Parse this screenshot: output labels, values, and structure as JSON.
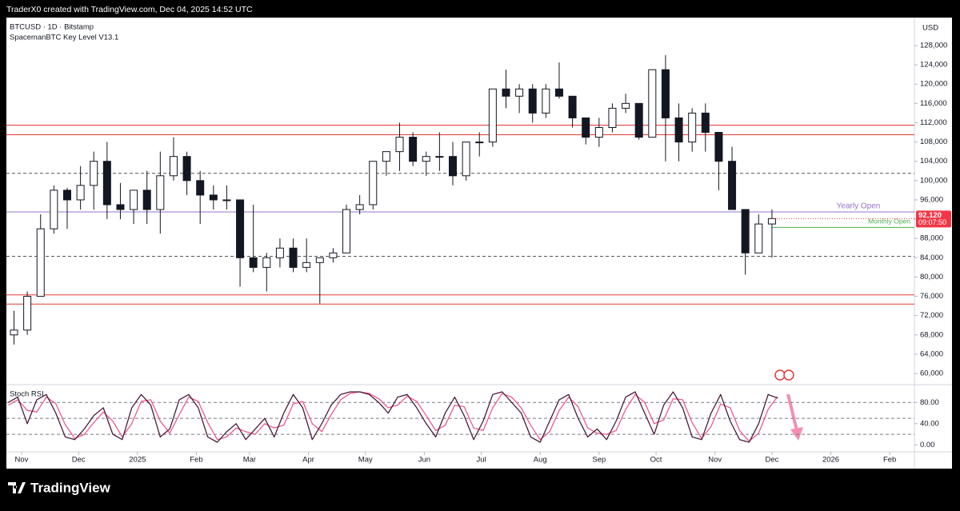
{
  "header": {
    "title": "TraderX0 created with TradingView.com, Dec 04, 2025 14:52 UTC"
  },
  "footer": {
    "brand": "TradingView"
  },
  "chart_data": [
    {
      "type": "candlestick",
      "symbol": "BTCUSD · 1D · Bitstamp",
      "indicator": "SpacemanBTC Key Level V13.1",
      "axis_label": "USD",
      "x": [
        "2024-10-28",
        "2024-11-04",
        "2024-11-11",
        "2024-11-18",
        "2024-11-25",
        "2024-12-02",
        "2024-12-09",
        "2024-12-16",
        "2024-12-23",
        "2024-12-30",
        "2025-01-06",
        "2025-01-13",
        "2025-01-20",
        "2025-01-27",
        "2025-02-03",
        "2025-02-10",
        "2025-02-17",
        "2025-02-24",
        "2025-03-03",
        "2025-03-10",
        "2025-03-17",
        "2025-03-24",
        "2025-03-31",
        "2025-04-07",
        "2025-04-14",
        "2025-04-21",
        "2025-04-28",
        "2025-05-05",
        "2025-05-12",
        "2025-05-19",
        "2025-05-26",
        "2025-06-02",
        "2025-06-09",
        "2025-06-16",
        "2025-06-23",
        "2025-06-30",
        "2025-07-07",
        "2025-07-14",
        "2025-07-21",
        "2025-07-28",
        "2025-08-04",
        "2025-08-11",
        "2025-08-18",
        "2025-08-25",
        "2025-09-01",
        "2025-09-08",
        "2025-09-15",
        "2025-09-22",
        "2025-09-29",
        "2025-10-06",
        "2025-10-13",
        "2025-10-20",
        "2025-10-27",
        "2025-11-03",
        "2025-11-10",
        "2025-11-17",
        "2025-11-24",
        "2025-12-01"
      ],
      "open": [
        68000,
        69000,
        76000,
        90000,
        98000,
        96000,
        99000,
        104000,
        95000,
        94000,
        98000,
        94000,
        101000,
        105000,
        100000,
        97000,
        96000,
        96000,
        84000,
        82000,
        84000,
        86000,
        82000,
        83000,
        84000,
        85000,
        94000,
        95000,
        104000,
        106000,
        109000,
        104000,
        105000,
        105000,
        101000,
        108000,
        108000,
        119000,
        117500,
        119000,
        114000,
        119000,
        117500,
        113000,
        109000,
        111000,
        115000,
        116000,
        109000,
        123000,
        113000,
        108000,
        114000,
        110000,
        104000,
        94000,
        85000,
        91000
      ],
      "high": [
        73000,
        77000,
        93000,
        99000,
        98500,
        103000,
        106000,
        108000,
        99500,
        98000,
        102000,
        106000,
        109000,
        106000,
        102000,
        99000,
        99000,
        96000,
        95000,
        85000,
        88000,
        88000,
        88000,
        84000,
        86000,
        95000,
        97000,
        104000,
        106000,
        112000,
        110000,
        106000,
        110000,
        108000,
        108000,
        110000,
        119000,
        123000,
        120000,
        120000,
        120000,
        124500,
        117500,
        113000,
        113000,
        116000,
        118000,
        116000,
        123000,
        126000,
        116000,
        115000,
        116000,
        110000,
        107000,
        94000,
        93000,
        94000
      ],
      "low": [
        66000,
        68000,
        76000,
        89000,
        90000,
        94000,
        94000,
        92000,
        92000,
        91000,
        91000,
        89000,
        100000,
        97000,
        91000,
        94000,
        94000,
        78000,
        81000,
        77000,
        82000,
        81000,
        81000,
        74500,
        83000,
        85000,
        93000,
        94000,
        101000,
        102000,
        103000,
        101000,
        102000,
        99000,
        100000,
        105000,
        107000,
        115000,
        114000,
        112000,
        113000,
        117000,
        111000,
        107500,
        107000,
        110000,
        114000,
        108500,
        109000,
        104000,
        104000,
        106000,
        106000,
        98000,
        94000,
        80500,
        85000,
        84000
      ],
      "close": [
        69000,
        76000,
        90000,
        98000,
        96000,
        99000,
        104000,
        95000,
        94000,
        98000,
        94000,
        101000,
        105000,
        100000,
        97000,
        96000,
        96000,
        84000,
        82000,
        84000,
        86000,
        82000,
        83000,
        84000,
        85000,
        94000,
        95000,
        104000,
        106000,
        109000,
        104000,
        105000,
        105000,
        101000,
        108000,
        108000,
        119000,
        117500,
        119000,
        114000,
        119000,
        117500,
        113000,
        109000,
        111000,
        115000,
        116000,
        109000,
        123000,
        113000,
        108000,
        114000,
        110000,
        104000,
        94000,
        85000,
        91000,
        92120
      ],
      "up_color": "#ffffff",
      "down_color": "#131722",
      "wick_color": "#131722",
      "xlim": [
        "2024-10-24",
        "2026-02-14"
      ],
      "xticks": [
        {
          "value": "2024-11-01",
          "label": "Nov"
        },
        {
          "value": "2024-12-01",
          "label": "Dec"
        },
        {
          "value": "2025-01-01",
          "label": "2025"
        },
        {
          "value": "2025-02-01",
          "label": "Feb"
        },
        {
          "value": "2025-03-01",
          "label": "Mar"
        },
        {
          "value": "2025-04-01",
          "label": "Apr"
        },
        {
          "value": "2025-05-01",
          "label": "May"
        },
        {
          "value": "2025-06-01",
          "label": "Jun"
        },
        {
          "value": "2025-07-01",
          "label": "Jul"
        },
        {
          "value": "2025-08-01",
          "label": "Aug"
        },
        {
          "value": "2025-09-01",
          "label": "Sep"
        },
        {
          "value": "2025-10-01",
          "label": "Oct"
        },
        {
          "value": "2025-11-01",
          "label": "Nov"
        },
        {
          "value": "2025-12-01",
          "label": "Dec"
        },
        {
          "value": "2026-01-01",
          "label": "2026"
        },
        {
          "value": "2026-02-01",
          "label": "Feb"
        }
      ],
      "ylim": [
        57850,
        133800
      ],
      "yticks": [
        {
          "value": 60000,
          "label": "60,000"
        },
        {
          "value": 64000,
          "label": "64,000"
        },
        {
          "value": 68000,
          "label": "68,000"
        },
        {
          "value": 72000,
          "label": "72,000"
        },
        {
          "value": 76000,
          "label": "76,000"
        },
        {
          "value": 80000,
          "label": "80,000"
        },
        {
          "value": 84000,
          "label": "84,000"
        },
        {
          "value": 88000,
          "label": "88,000"
        },
        {
          "value": 92000,
          "label": "92,000"
        },
        {
          "value": 96000,
          "label": "96,000"
        },
        {
          "value": 100000,
          "label": "100,000"
        },
        {
          "value": 104000,
          "label": "104,000"
        },
        {
          "value": 108000,
          "label": "108,000"
        },
        {
          "value": 112000,
          "label": "112,000"
        },
        {
          "value": 116000,
          "label": "116,000"
        },
        {
          "value": 120000,
          "label": "120,000"
        },
        {
          "value": 124000,
          "label": "124,000"
        },
        {
          "value": 128000,
          "label": "128,000"
        }
      ],
      "levels": [
        {
          "value": 111500,
          "color": "#e53935",
          "style": "solid"
        },
        {
          "value": 109500,
          "color": "#e53935",
          "style": "solid"
        },
        {
          "value": 101500,
          "color": "#555555",
          "style": "dashed"
        },
        {
          "value": 93500,
          "color": "#9575cd",
          "style": "solid",
          "label": "Yearly Open"
        },
        {
          "value": 90300,
          "color": "#4caf50",
          "style": "solid",
          "label": "Monthly Open",
          "extend": "current"
        },
        {
          "value": 84300,
          "color": "#555555",
          "style": "dashed"
        },
        {
          "value": 76300,
          "color": "#e53935",
          "style": "solid"
        },
        {
          "value": 74400,
          "color": "#e53935",
          "style": "solid"
        }
      ],
      "last_price": {
        "value": 92120,
        "label": "92,120",
        "countdown": "09:07:50",
        "color": "#f23645"
      }
    },
    {
      "type": "line",
      "title": "Stoch RSI",
      "x": [
        "2024-10-25",
        "2024-10-30",
        "2024-11-04",
        "2024-11-09",
        "2024-11-14",
        "2024-11-19",
        "2024-11-24",
        "2024-11-29",
        "2024-12-04",
        "2024-12-09",
        "2024-12-14",
        "2024-12-19",
        "2024-12-24",
        "2024-12-29",
        "2025-01-03",
        "2025-01-08",
        "2025-01-13",
        "2025-01-18",
        "2025-01-23",
        "2025-01-28",
        "2025-02-02",
        "2025-02-07",
        "2025-02-12",
        "2025-02-17",
        "2025-02-22",
        "2025-02-27",
        "2025-03-04",
        "2025-03-09",
        "2025-03-14",
        "2025-03-19",
        "2025-03-24",
        "2025-03-29",
        "2025-04-03",
        "2025-04-08",
        "2025-04-13",
        "2025-04-18",
        "2025-04-23",
        "2025-04-28",
        "2025-05-03",
        "2025-05-08",
        "2025-05-13",
        "2025-05-18",
        "2025-05-23",
        "2025-05-28",
        "2025-06-02",
        "2025-06-07",
        "2025-06-12",
        "2025-06-17",
        "2025-06-22",
        "2025-06-27",
        "2025-07-02",
        "2025-07-07",
        "2025-07-12",
        "2025-07-17",
        "2025-07-22",
        "2025-07-27",
        "2025-08-01",
        "2025-08-06",
        "2025-08-11",
        "2025-08-16",
        "2025-08-21",
        "2025-08-26",
        "2025-08-31",
        "2025-09-05",
        "2025-09-10",
        "2025-09-15",
        "2025-09-20",
        "2025-09-25",
        "2025-09-30",
        "2025-10-05",
        "2025-10-10",
        "2025-10-15",
        "2025-10-20",
        "2025-10-25",
        "2025-10-30",
        "2025-11-04",
        "2025-11-09",
        "2025-11-14",
        "2025-11-19",
        "2025-11-24",
        "2025-11-29",
        "2025-12-04"
      ],
      "series": [
        {
          "color": "#4a1d3a",
          "values": [
            80,
            90,
            40,
            85,
            95,
            60,
            15,
            10,
            30,
            55,
            70,
            20,
            10,
            70,
            95,
            75,
            15,
            30,
            85,
            95,
            70,
            15,
            5,
            25,
            40,
            10,
            30,
            50,
            15,
            60,
            95,
            70,
            10,
            40,
            75,
            95,
            100,
            100,
            95,
            80,
            60,
            90,
            95,
            70,
            40,
            15,
            60,
            90,
            55,
            10,
            45,
            95,
            100,
            80,
            60,
            15,
            5,
            45,
            85,
            95,
            50,
            15,
            30,
            10,
            45,
            90,
            100,
            60,
            20,
            75,
            100,
            70,
            15,
            10,
            60,
            95,
            45,
            10,
            5,
            40,
            95,
            88
          ]
        },
        {
          "color": "#ec5b8d",
          "values": [
            75,
            85,
            65,
            62,
            90,
            78,
            38,
            12,
            20,
            42,
            62,
            45,
            15,
            40,
            82,
            85,
            45,
            22,
            57,
            90,
            82,
            42,
            10,
            15,
            32,
            25,
            20,
            40,
            32,
            37,
            77,
            82,
            40,
            25,
            57,
            85,
            97,
            100,
            97,
            87,
            70,
            75,
            92,
            82,
            55,
            27,
            37,
            75,
            72,
            32,
            27,
            70,
            97,
            90,
            70,
            37,
            10,
            25,
            65,
            90,
            72,
            32,
            22,
            20,
            27,
            67,
            95,
            80,
            40,
            47,
            87,
            85,
            42,
            12,
            35,
            77,
            70,
            27,
            7,
            22,
            67,
            91
          ]
        }
      ],
      "xlim": [
        "2024-10-24",
        "2026-02-14"
      ],
      "ylim": [
        -13,
        112
      ],
      "yticks": [
        {
          "value": 0,
          "label": "0.00"
        },
        {
          "value": 40,
          "label": "40.00"
        },
        {
          "value": 80,
          "label": "80.00"
        }
      ],
      "bands": [
        80,
        50,
        20
      ]
    }
  ]
}
